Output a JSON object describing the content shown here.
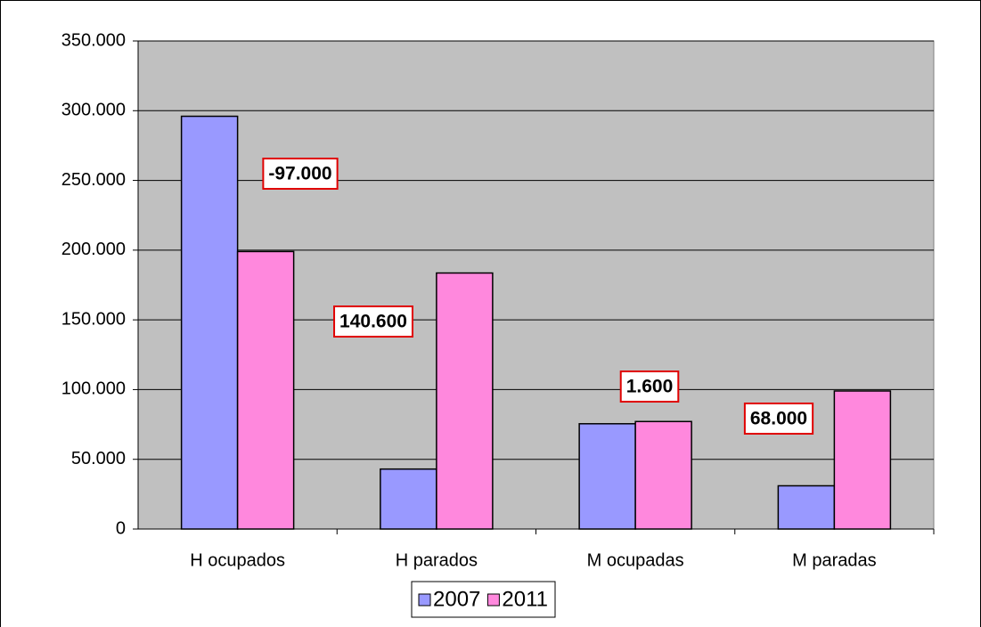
{
  "chart_data": {
    "type": "bar",
    "categories": [
      "H ocupados",
      "H parados",
      "M ocupadas",
      "M paradas"
    ],
    "series": [
      {
        "name": "2007",
        "color": "#9999ff",
        "values": [
          296000,
          43000,
          75500,
          31000
        ]
      },
      {
        "name": "2011",
        "color": "#ff88dd",
        "values": [
          199000,
          183600,
          77100,
          99000
        ]
      }
    ],
    "ylim": [
      0,
      350000
    ],
    "yticks": [
      0,
      {
        "value": 50000,
        "label": "50.000"
      },
      {
        "value": 100000,
        "label": "100.000"
      },
      {
        "value": 150000,
        "label": "150.000"
      },
      {
        "value": 200000,
        "label": "200.000"
      },
      {
        "value": 250000,
        "label": "250.000"
      },
      {
        "value": 300000,
        "label": "300.000"
      },
      {
        "value": 350000,
        "label": "350.000"
      }
    ],
    "grid": true,
    "plot_background": "#c0c0c0",
    "annotations": [
      "-97.000",
      "140.600",
      "1.600",
      "68.000"
    ],
    "legend": "bottom"
  }
}
